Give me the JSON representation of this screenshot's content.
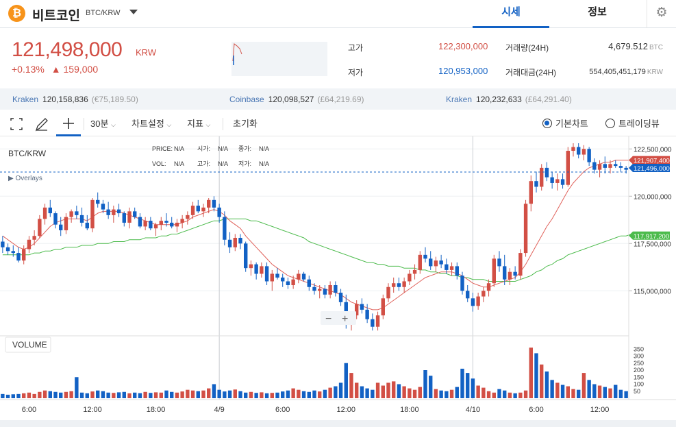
{
  "header": {
    "coin_logo": "₿",
    "coin_name": "비트코인",
    "pair": "BTC/KRW",
    "tabs": [
      "시세",
      "정보"
    ],
    "settings_icon": "gear-icon"
  },
  "price": {
    "current": "121,498,000",
    "unit": "KRW",
    "change_pct": "+0.13%",
    "change_amt": "▲ 159,000"
  },
  "stats": {
    "high_label": "고가",
    "high": "122,300,000",
    "low_label": "저가",
    "low": "120,953,000",
    "vol_label": "거래량(24H)",
    "vol": "4,679.512",
    "vol_unit": "BTC",
    "amt_label": "거래대금(24H)",
    "amt": "554,405,451,179",
    "amt_unit": "KRW"
  },
  "exchanges": [
    {
      "name": "Kraken",
      "price": "120,158,836",
      "gbp": "(€75,189.50)"
    },
    {
      "name": "Coinbase",
      "price": "120,098,527",
      "gbp": "(£64,219.69)"
    },
    {
      "name": "Kraken",
      "price": "120,232,633",
      "gbp": "(£64,291.40)"
    }
  ],
  "toolbar": {
    "interval": "30분",
    "chart_settings": "차트설정",
    "indicators": "지표",
    "reset": "초기화",
    "basic_chart": "기본차트",
    "tradingview": "트레이딩뷰"
  },
  "legend": {
    "symbol": "BTC/KRW",
    "overlays": "▶ Overlays",
    "row1": [
      [
        "PRICE:",
        "N/A"
      ],
      [
        "시가:",
        "N/A"
      ],
      [
        "종가:",
        "N/A"
      ]
    ],
    "row2": [
      [
        "VOL:",
        "N/A"
      ],
      [
        "고가:",
        "N/A"
      ],
      [
        "저가:",
        "N/A"
      ]
    ]
  },
  "volume_label": "VOLUME",
  "zoom": {
    "minus": "−",
    "plus": "+"
  },
  "colors": {
    "up": "#d24f45",
    "down": "#1261c4",
    "ma_short": "#e0625b",
    "ma_long": "#4cbb4c",
    "accent": "#1261c4"
  },
  "chart_data": {
    "type": "candlestick",
    "y_axis_ticks": [
      "122,500,000",
      "120,000,000",
      "117,500,000",
      "115,000,000"
    ],
    "y_axis_values": [
      122500000,
      120000000,
      117500000,
      115000000
    ],
    "price_tags": [
      {
        "label": "121,907,400",
        "value": 121907400,
        "color": "#d24f45"
      },
      {
        "label": "121,496,000",
        "value": 121496000,
        "color": "#1261c4"
      },
      {
        "label": "117,917,200",
        "value": 117917200,
        "color": "#4cbb4c"
      }
    ],
    "volume_ticks": [
      "350",
      "300",
      "250",
      "200",
      "150",
      "100",
      "50"
    ],
    "volume_values": [
      350,
      300,
      250,
      200,
      150,
      100,
      50
    ],
    "x_ticks": [
      "6:00",
      "12:00",
      "18:00",
      "4/9",
      "6:00",
      "12:00",
      "18:00",
      "4/10",
      "6:00",
      "12:00"
    ],
    "x_tick_index": [
      5,
      17,
      29,
      41,
      53,
      65,
      77,
      89,
      101,
      113
    ],
    "ohlc": [
      [
        117.6,
        117.9,
        117.0,
        117.3
      ],
      [
        117.3,
        117.5,
        116.9,
        117.1
      ],
      [
        117.1,
        117.4,
        116.8,
        117.0
      ],
      [
        117.0,
        117.3,
        116.5,
        116.6
      ],
      [
        116.6,
        117.4,
        116.4,
        117.2
      ],
      [
        117.2,
        117.9,
        117.0,
        117.7
      ],
      [
        117.7,
        118.2,
        117.4,
        117.9
      ],
      [
        117.9,
        119.0,
        117.8,
        118.8
      ],
      [
        118.8,
        119.6,
        118.5,
        119.4
      ],
      [
        119.4,
        119.8,
        118.9,
        119.1
      ],
      [
        119.1,
        119.2,
        118.3,
        118.5
      ],
      [
        118.5,
        118.9,
        117.9,
        118.2
      ],
      [
        118.2,
        119.1,
        118.0,
        118.9
      ],
      [
        118.9,
        119.3,
        118.6,
        119.2
      ],
      [
        119.2,
        119.5,
        118.8,
        119.0
      ],
      [
        119.0,
        119.4,
        118.4,
        118.6
      ],
      [
        118.6,
        119.0,
        118.2,
        118.3
      ],
      [
        118.3,
        119.9,
        118.1,
        119.8
      ],
      [
        119.8,
        120.2,
        119.4,
        119.6
      ],
      [
        119.6,
        119.8,
        119.1,
        119.3
      ],
      [
        119.3,
        119.7,
        118.8,
        119.0
      ],
      [
        119.0,
        119.5,
        118.6,
        119.3
      ],
      [
        119.3,
        119.6,
        118.9,
        119.1
      ],
      [
        119.1,
        119.2,
        118.4,
        118.6
      ],
      [
        118.6,
        119.4,
        118.3,
        119.2
      ],
      [
        119.2,
        119.4,
        118.8,
        118.9
      ],
      [
        118.9,
        119.1,
        118.3,
        118.4
      ],
      [
        118.4,
        118.9,
        118.2,
        118.7
      ],
      [
        118.7,
        118.9,
        118.2,
        118.3
      ],
      [
        118.3,
        118.6,
        117.9,
        118.5
      ],
      [
        118.5,
        118.9,
        118.2,
        118.7
      ],
      [
        118.7,
        119.1,
        118.4,
        118.6
      ],
      [
        118.6,
        118.9,
        118.3,
        118.4
      ],
      [
        118.4,
        118.8,
        118.1,
        118.6
      ],
      [
        118.6,
        119.0,
        118.3,
        118.8
      ],
      [
        118.8,
        119.2,
        118.5,
        119.0
      ],
      [
        119.0,
        119.7,
        118.8,
        119.5
      ],
      [
        119.5,
        119.8,
        119.1,
        119.2
      ],
      [
        119.2,
        119.6,
        118.9,
        119.4
      ],
      [
        119.4,
        119.9,
        119.1,
        119.8
      ],
      [
        119.8,
        120.0,
        119.2,
        119.4
      ],
      [
        119.4,
        119.6,
        118.6,
        118.9
      ],
      [
        118.9,
        119.2,
        117.4,
        117.7
      ],
      [
        117.7,
        118.1,
        117.0,
        117.3
      ],
      [
        117.3,
        118.0,
        117.1,
        117.8
      ],
      [
        117.8,
        118.0,
        117.2,
        117.5
      ],
      [
        117.5,
        117.6,
        116.0,
        116.2
      ],
      [
        116.2,
        116.6,
        115.8,
        116.4
      ],
      [
        116.4,
        116.5,
        115.6,
        115.9
      ],
      [
        115.9,
        116.5,
        115.7,
        116.3
      ],
      [
        116.3,
        116.5,
        115.3,
        115.5
      ],
      [
        115.5,
        116.1,
        115.0,
        115.9
      ],
      [
        115.9,
        116.2,
        115.6,
        115.7
      ],
      [
        115.7,
        115.9,
        115.2,
        115.5
      ],
      [
        115.5,
        115.7,
        115.1,
        115.3
      ],
      [
        115.3,
        115.8,
        115.1,
        115.6
      ],
      [
        115.6,
        116.1,
        115.4,
        115.9
      ],
      [
        115.9,
        116.0,
        115.5,
        115.6
      ],
      [
        115.6,
        115.8,
        115.0,
        115.2
      ],
      [
        115.2,
        115.4,
        114.8,
        115.0
      ],
      [
        115.0,
        115.3,
        114.6,
        115.1
      ],
      [
        115.1,
        115.3,
        114.6,
        114.8
      ],
      [
        114.8,
        115.5,
        114.6,
        115.3
      ],
      [
        115.3,
        115.5,
        114.7,
        114.9
      ],
      [
        114.9,
        115.1,
        114.2,
        114.4
      ],
      [
        114.4,
        114.8,
        113.0,
        113.3
      ],
      [
        113.3,
        113.9,
        112.9,
        113.7
      ],
      [
        113.7,
        114.5,
        113.5,
        114.3
      ],
      [
        114.3,
        114.6,
        113.8,
        114.0
      ],
      [
        114.0,
        114.3,
        113.3,
        113.5
      ],
      [
        113.5,
        113.8,
        112.9,
        113.1
      ],
      [
        113.1,
        113.9,
        112.9,
        113.7
      ],
      [
        113.7,
        114.8,
        113.5,
        114.6
      ],
      [
        114.6,
        115.4,
        114.4,
        115.2
      ],
      [
        115.2,
        115.7,
        114.9,
        115.4
      ],
      [
        115.4,
        115.7,
        115.0,
        115.2
      ],
      [
        115.2,
        115.7,
        114.9,
        115.5
      ],
      [
        115.5,
        116.1,
        115.3,
        115.9
      ],
      [
        115.9,
        116.4,
        115.6,
        116.1
      ],
      [
        116.1,
        117.1,
        115.9,
        116.9
      ],
      [
        116.9,
        117.3,
        116.5,
        116.7
      ],
      [
        116.7,
        117.1,
        116.1,
        116.3
      ],
      [
        116.3,
        116.8,
        116.0,
        116.6
      ],
      [
        116.6,
        116.9,
        116.2,
        116.4
      ],
      [
        116.4,
        116.7,
        115.9,
        116.1
      ],
      [
        116.1,
        116.5,
        115.8,
        116.3
      ],
      [
        116.3,
        116.5,
        115.6,
        115.8
      ],
      [
        115.8,
        116.0,
        114.8,
        115.0
      ],
      [
        115.0,
        115.3,
        114.4,
        114.6
      ],
      [
        114.6,
        114.9,
        113.9,
        114.2
      ],
      [
        114.2,
        114.9,
        114.0,
        114.7
      ],
      [
        114.7,
        115.2,
        114.4,
        115.0
      ],
      [
        115.0,
        115.6,
        114.7,
        115.4
      ],
      [
        115.4,
        116.9,
        115.2,
        116.7
      ],
      [
        116.7,
        117.1,
        116.0,
        116.3
      ],
      [
        116.3,
        116.9,
        115.3,
        115.6
      ],
      [
        115.6,
        116.2,
        115.3,
        116.0
      ],
      [
        116.0,
        116.3,
        115.6,
        115.8
      ],
      [
        115.8,
        117.2,
        115.6,
        117.0
      ],
      [
        117.0,
        119.8,
        116.8,
        119.6
      ],
      [
        119.6,
        121.1,
        119.2,
        120.8
      ],
      [
        120.8,
        121.3,
        120.2,
        120.5
      ],
      [
        120.5,
        121.7,
        120.3,
        121.5
      ],
      [
        121.5,
        121.8,
        120.8,
        121.0
      ],
      [
        121.0,
        121.3,
        120.4,
        120.7
      ],
      [
        120.7,
        121.2,
        120.3,
        120.9
      ],
      [
        120.9,
        121.2,
        120.4,
        120.6
      ],
      [
        120.6,
        122.6,
        120.5,
        122.4
      ],
      [
        122.4,
        122.8,
        122.1,
        122.6
      ],
      [
        122.6,
        122.8,
        122.0,
        122.2
      ],
      [
        122.2,
        122.7,
        121.9,
        122.5
      ],
      [
        122.5,
        122.6,
        121.6,
        121.8
      ],
      [
        121.8,
        122.0,
        121.2,
        121.4
      ],
      [
        121.4,
        121.9,
        121.0,
        121.7
      ],
      [
        121.7,
        122.1,
        121.2,
        121.5
      ],
      [
        121.5,
        121.9,
        121.2,
        121.7
      ],
      [
        121.7,
        121.9,
        121.5,
        121.6
      ],
      [
        121.6,
        121.8,
        121.3,
        121.5
      ],
      [
        121.5,
        121.6,
        121.2,
        121.4
      ]
    ],
    "volume": [
      30,
      25,
      28,
      30,
      35,
      40,
      30,
      45,
      55,
      50,
      45,
      40,
      45,
      50,
      150,
      40,
      35,
      48,
      55,
      50,
      40,
      38,
      42,
      45,
      35,
      40,
      36,
      45,
      38,
      42,
      40,
      55,
      45,
      40,
      48,
      60,
      55,
      50,
      55,
      70,
      100,
      60,
      48,
      55,
      62,
      50,
      40,
      45,
      38,
      42,
      35,
      38,
      40,
      48,
      55,
      70,
      60,
      50,
      45,
      55,
      48,
      60,
      75,
      85,
      110,
      250,
      180,
      110,
      85,
      70,
      60,
      110,
      90,
      110,
      120,
      100,
      85,
      70,
      60,
      80,
      200,
      160,
      65,
      55,
      50,
      60,
      80,
      210,
      180,
      140,
      90,
      75,
      50,
      40,
      65,
      55,
      40,
      35,
      40,
      55,
      360,
      320,
      240,
      190,
      130,
      110,
      95,
      85,
      65,
      60,
      180,
      130,
      100,
      90,
      80,
      70,
      95,
      60,
      50,
      30
    ],
    "ma_short": [
      117.9,
      117.7,
      117.5,
      117.3,
      117.2,
      117.3,
      117.5,
      117.8,
      118.1,
      118.4,
      118.6,
      118.7,
      118.8,
      118.8,
      118.8,
      118.8,
      118.7,
      118.9,
      119.1,
      119.2,
      119.2,
      119.2,
      119.2,
      119.1,
      119.0,
      118.9,
      118.8,
      118.7,
      118.6,
      118.5,
      118.5,
      118.5,
      118.5,
      118.5,
      118.6,
      118.7,
      118.9,
      119.0,
      119.1,
      119.2,
      119.3,
      119.2,
      119.0,
      118.7,
      118.5,
      118.3,
      117.9,
      117.6,
      117.3,
      117.0,
      116.7,
      116.4,
      116.2,
      116.0,
      115.8,
      115.7,
      115.6,
      115.5,
      115.4,
      115.3,
      115.2,
      115.1,
      115.0,
      114.9,
      114.8,
      114.6,
      114.4,
      114.3,
      114.2,
      114.1,
      114.0,
      114.0,
      114.1,
      114.3,
      114.5,
      114.7,
      114.9,
      115.1,
      115.3,
      115.5,
      115.7,
      115.8,
      115.9,
      116.0,
      116.0,
      116.0,
      115.9,
      115.8,
      115.6,
      115.4,
      115.3,
      115.2,
      115.2,
      115.3,
      115.4,
      115.5,
      115.6,
      115.7,
      116.0,
      116.4,
      116.9,
      117.4,
      117.9,
      118.4,
      118.8,
      119.3,
      119.8,
      120.3,
      120.7,
      121.0,
      121.3,
      121.5,
      121.6,
      121.7,
      121.8,
      121.8,
      121.9,
      121.9,
      121.9,
      121.9
    ],
    "ma_long": [
      116.9,
      116.9,
      116.9,
      116.9,
      116.9,
      116.9,
      117.0,
      117.0,
      117.1,
      117.1,
      117.2,
      117.2,
      117.3,
      117.3,
      117.3,
      117.4,
      117.4,
      117.4,
      117.5,
      117.5,
      117.5,
      117.6,
      117.6,
      117.6,
      117.7,
      117.7,
      117.7,
      117.8,
      117.8,
      117.8,
      117.9,
      117.9,
      118.0,
      118.0,
      118.1,
      118.2,
      118.3,
      118.4,
      118.5,
      118.6,
      118.7,
      118.7,
      118.8,
      118.8,
      118.8,
      118.8,
      118.8,
      118.7,
      118.7,
      118.6,
      118.5,
      118.4,
      118.3,
      118.2,
      118.1,
      118.0,
      117.9,
      117.8,
      117.6,
      117.5,
      117.4,
      117.3,
      117.2,
      117.1,
      117.0,
      116.9,
      116.8,
      116.7,
      116.6,
      116.5,
      116.5,
      116.4,
      116.4,
      116.3,
      116.3,
      116.3,
      116.2,
      116.2,
      116.2,
      116.1,
      116.1,
      116.0,
      116.0,
      115.9,
      115.9,
      115.8,
      115.8,
      115.7,
      115.7,
      115.6,
      115.6,
      115.6,
      115.5,
      115.5,
      115.5,
      115.5,
      115.5,
      115.5,
      115.6,
      115.7,
      115.8,
      116.0,
      116.1,
      116.3,
      116.4,
      116.6,
      116.7,
      116.9,
      117.0,
      117.1,
      117.2,
      117.3,
      117.4,
      117.5,
      117.6,
      117.7,
      117.8,
      117.9,
      117.9,
      118.0
    ]
  }
}
